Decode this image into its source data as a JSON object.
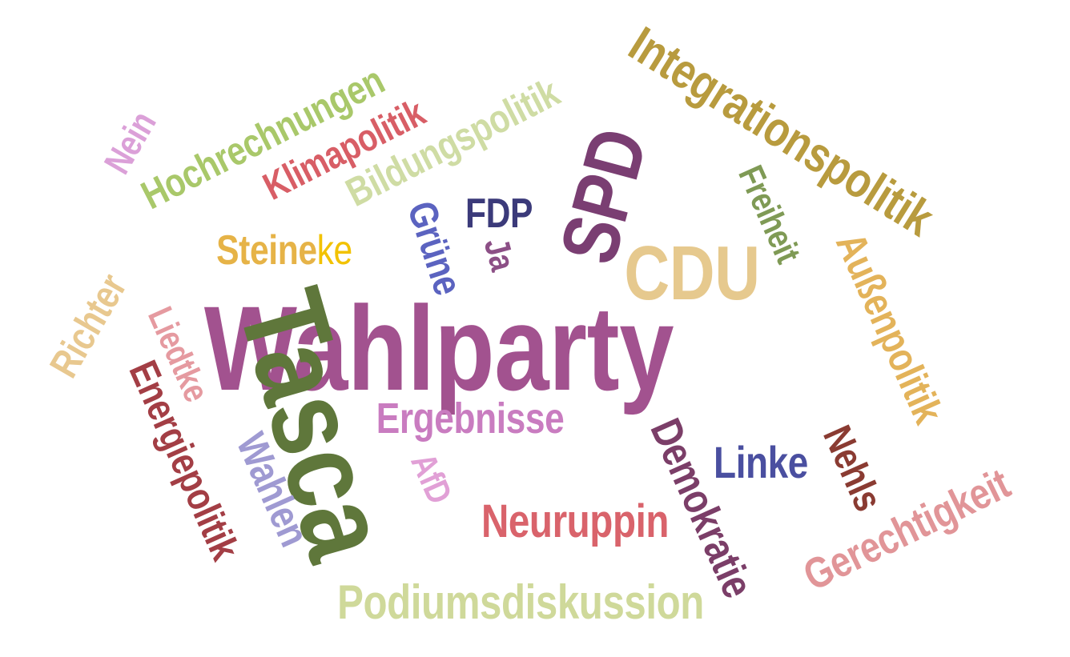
{
  "words": {
    "wahlparty": {
      "text": "Wahlparty",
      "color": "#a2528f"
    },
    "tasca": {
      "text": "Tasca",
      "color": "#5f773b"
    },
    "cdu": {
      "text": "CDU",
      "color": "#e6c98e"
    },
    "spd": {
      "text": "SPD",
      "color": "#7a3e72"
    },
    "integrationspolitik": {
      "text": "Integrationspolitik",
      "color": "#b89b3e"
    },
    "aussenpolitik": {
      "text": "Außenpolitik",
      "color": "#e3b35a"
    },
    "freiheit": {
      "text": "Freiheit",
      "color": "#7f9a55"
    },
    "gerechtigkeit": {
      "text": "Gerechtigkeit",
      "color": "#e19598"
    },
    "nehls": {
      "text": "Nehls",
      "color": "#8a3b32"
    },
    "linke": {
      "text": "Linke",
      "color": "#4a4fa0"
    },
    "demokratie": {
      "text": "Demokratie",
      "color": "#7b3e68"
    },
    "podiumsdiskussion": {
      "text": "Podiumsdiskussion",
      "color": "#cfd99a"
    },
    "neuruppin": {
      "text": "Neuruppin",
      "color": "#d9636b"
    },
    "ergebnisse": {
      "text": "Ergebnisse",
      "color": "#c97cc0"
    },
    "afd": {
      "text": "AfD",
      "color": "#e1a0d6"
    },
    "wahlen": {
      "text": "Wahlen",
      "color": "#9f9ad2"
    },
    "energiepolitik": {
      "text": "Energiepolitik",
      "color": "#a33e45"
    },
    "liedtke": {
      "text": "Liedtke",
      "color": "#e59aa0"
    },
    "richter": {
      "text": "Richter",
      "color": "#e8c88f"
    },
    "steineke_a": {
      "text": "Steine",
      "color": "#e6b347"
    },
    "steineke_b": {
      "text": "ke",
      "color": "#f2c200"
    },
    "gruene": {
      "text": "Grüne",
      "color": "#5b63c0"
    },
    "fdp": {
      "text": "FDP",
      "color": "#3b3a7a"
    },
    "ja": {
      "text": "Ja",
      "color": "#8c4f86"
    },
    "bildungspolitik": {
      "text": "Bildungspolitik",
      "color": "#cfdca4"
    },
    "klimapolitik": {
      "text": "Klimapolitik",
      "color": "#d85e66"
    },
    "hochrechnungen": {
      "text": "Hochrechnungen",
      "color": "#a9c86a"
    },
    "nein": {
      "text": "Nein",
      "color": "#dba0d8"
    }
  }
}
